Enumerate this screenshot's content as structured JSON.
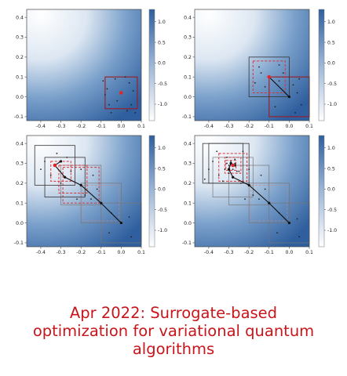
{
  "chart_data": [
    {
      "type": "heatmap",
      "title": "",
      "xlabel": "",
      "ylabel": "",
      "xlim": [
        -0.47,
        0.1
      ],
      "ylim": [
        -0.12,
        0.44
      ],
      "colorbar": {
        "ticks": [
          1.0,
          0.5,
          0.0,
          -0.5,
          -1.0
        ],
        "range": [
          -1.4,
          1.3
        ],
        "colors": [
          "#ffffff",
          "#2f5f9e"
        ]
      },
      "path": [
        [
          0.0,
          0.02
        ]
      ],
      "trust_regions": [
        {
          "center": [
            0.0,
            0.02
          ],
          "half_width": 0.08,
          "style": "solid-dark-red"
        }
      ],
      "best_point": [
        0.0,
        0.02
      ],
      "samples": [
        [
          -0.09,
          0.08
        ],
        [
          -0.07,
          0.04
        ],
        [
          -0.03,
          0.09
        ],
        [
          0.04,
          0.07
        ],
        [
          0.06,
          0.03
        ],
        [
          -0.06,
          -0.04
        ],
        [
          -0.02,
          -0.02
        ],
        [
          0.05,
          -0.04
        ],
        [
          0.03,
          -0.07
        ],
        [
          -0.05,
          -0.08
        ],
        [
          0.07,
          -0.08
        ],
        [
          -0.08,
          0.01
        ],
        [
          0.02,
          0.1
        ]
      ]
    },
    {
      "type": "heatmap",
      "title": "",
      "xlabel": "",
      "ylabel": "",
      "xlim": [
        -0.47,
        0.1
      ],
      "ylim": [
        -0.12,
        0.44
      ],
      "colorbar": {
        "ticks": [
          1.0,
          0.5,
          0.0,
          -0.5,
          -1.0
        ],
        "range": [
          -1.4,
          1.3
        ],
        "colors": [
          "#ffffff",
          "#2f5f9e"
        ]
      },
      "path": [
        [
          0.0,
          0.0
        ],
        [
          -0.1,
          0.1
        ]
      ],
      "trust_regions": [
        {
          "center": [
            0.0,
            0.0
          ],
          "half_width": 0.1,
          "style": "solid-dark-red"
        },
        {
          "center": [
            -0.1,
            0.1
          ],
          "half_width": 0.1,
          "style": "solid-dark"
        },
        {
          "center": [
            -0.1,
            0.1
          ],
          "half_width": 0.08,
          "style": "dashed-red"
        }
      ],
      "best_point": [
        -0.1,
        0.1
      ],
      "samples": [
        [
          -0.05,
          0.08
        ],
        [
          -0.03,
          0.12
        ],
        [
          0.02,
          0.06
        ],
        [
          0.04,
          0.02
        ],
        [
          0.06,
          -0.04
        ],
        [
          -0.07,
          -0.05
        ],
        [
          0.03,
          -0.08
        ],
        [
          0.05,
          0.09
        ],
        [
          -0.15,
          0.15
        ],
        [
          -0.12,
          0.05
        ],
        [
          -0.05,
          0.16
        ],
        [
          -0.17,
          0.07
        ],
        [
          -0.14,
          0.12
        ]
      ]
    },
    {
      "type": "heatmap",
      "title": "",
      "xlabel": "",
      "ylabel": "",
      "xlim": [
        -0.47,
        0.1
      ],
      "ylim": [
        -0.12,
        0.44
      ],
      "colorbar": {
        "ticks": [
          1.0,
          0.5,
          0.0,
          -0.5,
          -1.0
        ],
        "range": [
          -1.4,
          1.3
        ],
        "colors": [
          "#ffffff",
          "#2f5f9e"
        ]
      },
      "path": [
        [
          0.0,
          0.0
        ],
        [
          -0.1,
          0.1
        ],
        [
          -0.2,
          0.19
        ],
        [
          -0.28,
          0.23
        ],
        [
          -0.33,
          0.29
        ],
        [
          -0.3,
          0.31
        ]
      ],
      "trust_regions": [
        {
          "center": [
            0.0,
            0.0
          ],
          "half_width": 0.1,
          "style": "solid-gray"
        },
        {
          "center": [
            -0.1,
            0.1
          ],
          "half_width": 0.1,
          "style": "solid-gray"
        },
        {
          "center": [
            -0.1,
            0.1
          ],
          "half_width": 0.09,
          "style": "dashed-gray"
        },
        {
          "center": [
            -0.2,
            0.19
          ],
          "half_width": 0.1,
          "style": "solid-gray"
        },
        {
          "center": [
            -0.2,
            0.19
          ],
          "half_width": 0.09,
          "style": "dashed-red"
        },
        {
          "center": [
            -0.28,
            0.23
          ],
          "half_width": 0.1,
          "style": "solid-dark"
        },
        {
          "center": [
            -0.33,
            0.29
          ],
          "half_width": 0.1,
          "style": "solid-dark"
        },
        {
          "center": [
            -0.3,
            0.26
          ],
          "half_width": 0.05,
          "style": "dashed-red"
        },
        {
          "center": [
            -0.24,
            0.22
          ],
          "half_width": 0.07,
          "style": "dashed-red"
        }
      ],
      "best_point": [
        -0.33,
        0.29
      ],
      "samples": [
        [
          -0.05,
          0.05
        ],
        [
          0.04,
          0.03
        ],
        [
          -0.06,
          -0.05
        ],
        [
          0.05,
          -0.07
        ],
        [
          -0.15,
          0.12
        ],
        [
          -0.12,
          0.17
        ],
        [
          -0.18,
          0.14
        ],
        [
          -0.22,
          0.12
        ],
        [
          -0.25,
          0.26
        ],
        [
          -0.3,
          0.2
        ],
        [
          -0.35,
          0.24
        ],
        [
          -0.38,
          0.31
        ],
        [
          -0.27,
          0.33
        ],
        [
          -0.32,
          0.35
        ],
        [
          -0.4,
          0.27
        ],
        [
          -0.2,
          0.27
        ],
        [
          -0.14,
          0.24
        ]
      ]
    },
    {
      "type": "heatmap",
      "title": "",
      "xlabel": "",
      "ylabel": "",
      "xlim": [
        -0.47,
        0.1
      ],
      "ylim": [
        -0.12,
        0.44
      ],
      "colorbar": {
        "ticks": [
          1.0,
          0.5,
          0.0,
          -0.5,
          -1.0
        ],
        "range": [
          -1.4,
          1.3
        ],
        "colors": [
          "#ffffff",
          "#2f5f9e"
        ]
      },
      "path": [
        [
          0.0,
          0.0
        ],
        [
          -0.1,
          0.1
        ],
        [
          -0.2,
          0.19
        ],
        [
          -0.28,
          0.23
        ],
        [
          -0.3,
          0.27
        ],
        [
          -0.29,
          0.3
        ],
        [
          -0.27,
          0.29
        ]
      ],
      "trust_regions": [
        {
          "center": [
            0.0,
            0.0
          ],
          "half_width": 0.1,
          "style": "solid-gray"
        },
        {
          "center": [
            -0.1,
            0.1
          ],
          "half_width": 0.1,
          "style": "solid-gray"
        },
        {
          "center": [
            -0.1,
            0.1
          ],
          "half_width": 0.09,
          "style": "dashed-gray"
        },
        {
          "center": [
            -0.2,
            0.19
          ],
          "half_width": 0.1,
          "style": "solid-gray"
        },
        {
          "center": [
            -0.28,
            0.23
          ],
          "half_width": 0.1,
          "style": "solid-gray"
        },
        {
          "center": [
            -0.33,
            0.3
          ],
          "half_width": 0.1,
          "style": "solid-dark"
        },
        {
          "center": [
            -0.3,
            0.3
          ],
          "half_width": 0.1,
          "style": "solid-dark"
        },
        {
          "center": [
            -0.28,
            0.28
          ],
          "half_width": 0.07,
          "style": "dashed-red"
        },
        {
          "center": [
            -0.28,
            0.29
          ],
          "half_width": 0.04,
          "style": "dashed-red"
        },
        {
          "center": [
            -0.29,
            0.29
          ],
          "half_width": 0.025,
          "style": "dashed-red"
        }
      ],
      "best_point": [
        -0.28,
        0.29
      ],
      "samples": [
        [
          -0.05,
          0.05
        ],
        [
          0.04,
          0.02
        ],
        [
          -0.06,
          -0.05
        ],
        [
          0.05,
          -0.07
        ],
        [
          -0.15,
          0.12
        ],
        [
          -0.12,
          0.17
        ],
        [
          -0.18,
          0.14
        ],
        [
          -0.22,
          0.12
        ],
        [
          -0.25,
          0.26
        ],
        [
          -0.35,
          0.24
        ],
        [
          -0.38,
          0.31
        ],
        [
          -0.4,
          0.27
        ],
        [
          -0.2,
          0.27
        ],
        [
          -0.14,
          0.24
        ],
        [
          -0.31,
          0.33
        ],
        [
          -0.27,
          0.32
        ],
        [
          -0.26,
          0.26
        ],
        [
          -0.32,
          0.27
        ],
        [
          -0.3,
          0.25
        ],
        [
          -0.29,
          0.31
        ],
        [
          -0.27,
          0.3
        ],
        [
          -0.31,
          0.3
        ],
        [
          -0.28,
          0.27
        ],
        [
          -0.3,
          0.29
        ],
        [
          -0.36,
          0.36
        ],
        [
          -0.23,
          0.36
        ],
        [
          -0.42,
          0.22
        ],
        [
          -0.24,
          0.2
        ],
        [
          -0.33,
          0.21
        ]
      ]
    }
  ],
  "caption": {
    "line1": "Apr 2022: Surrogate-based",
    "line2": "optimization for variational quantum",
    "line3": "algorithms"
  },
  "colors": {
    "caption": "#c8151b",
    "heat_low": "#ffffff",
    "heat_high": "#2f5f9e",
    "trust_region_current": "#9c1c22",
    "trust_region_dashed": "#d8323a",
    "best_point": "#e0262b",
    "path": "#111111"
  }
}
